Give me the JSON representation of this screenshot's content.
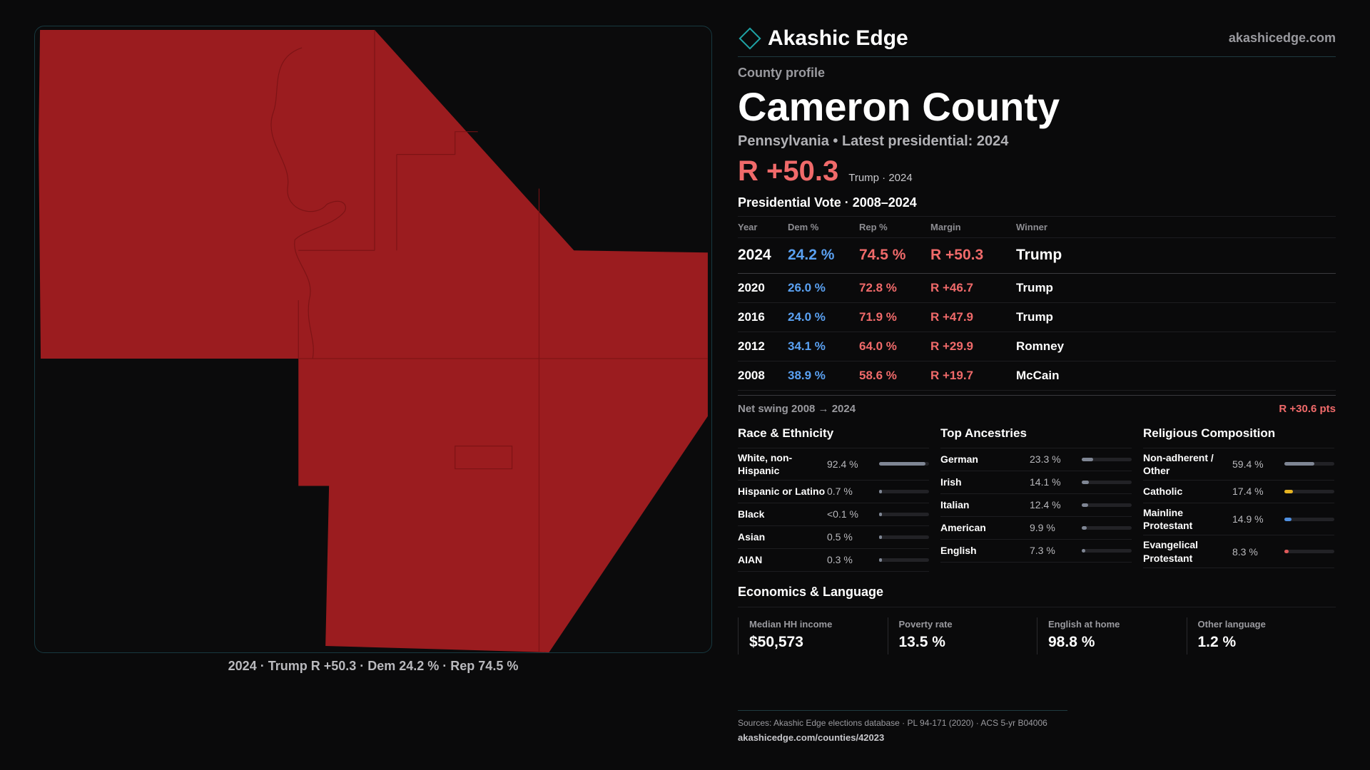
{
  "brand": {
    "name": "Akashic Edge",
    "url": "akashicedge.com"
  },
  "profile": {
    "eyebrow": "County profile",
    "county_name": "Cameron County",
    "subtitle": "Pennsylvania • Latest presidential: 2024",
    "headline_margin": "R +50.3",
    "headline_note": "Trump · 2024"
  },
  "map": {
    "fill_color": "#9b1c1f",
    "caption": "2024 · Trump R +50.3 · Dem 24.2 % · Rep 74.5 %"
  },
  "vote": {
    "title": "Presidential Vote · 2008–2024",
    "headers": {
      "year": "Year",
      "dem": "Dem %",
      "rep": "Rep %",
      "margin": "Margin",
      "winner": "Winner"
    },
    "rows": [
      {
        "year": "2024",
        "dem": "24.2 %",
        "rep": "74.5 %",
        "margin": "R +50.3",
        "winner": "Trump"
      },
      {
        "year": "2020",
        "dem": "26.0 %",
        "rep": "72.8 %",
        "margin": "R +46.7",
        "winner": "Trump"
      },
      {
        "year": "2016",
        "dem": "24.0 %",
        "rep": "71.9 %",
        "margin": "R +47.9",
        "winner": "Trump"
      },
      {
        "year": "2012",
        "dem": "34.1 %",
        "rep": "64.0 %",
        "margin": "R +29.9",
        "winner": "Romney"
      },
      {
        "year": "2008",
        "dem": "38.9 %",
        "rep": "58.6 %",
        "margin": "R +19.7",
        "winner": "McCain"
      }
    ],
    "swing_label": "Net swing 2008 → 2024",
    "swing_value": "R +30.6 pts",
    "dem_color": "#5aa1f2",
    "rep_color": "#f06a6a"
  },
  "race": {
    "title": "Race & Ethnicity",
    "items": [
      {
        "label": "White, non-Hispanic",
        "value": "92.4 %",
        "pct": 92.4
      },
      {
        "label": "Hispanic or Latino",
        "value": "0.7 %",
        "pct": 0.7
      },
      {
        "label": "Black",
        "value": "<0.1 %",
        "pct": 0.05
      },
      {
        "label": "Asian",
        "value": "0.5 %",
        "pct": 0.5
      },
      {
        "label": "AIAN",
        "value": "0.3 %",
        "pct": 0.3
      }
    ]
  },
  "ancestry": {
    "title": "Top Ancestries",
    "items": [
      {
        "label": "German",
        "value": "23.3 %",
        "pct": 23.3
      },
      {
        "label": "Irish",
        "value": "14.1 %",
        "pct": 14.1
      },
      {
        "label": "Italian",
        "value": "12.4 %",
        "pct": 12.4
      },
      {
        "label": "American",
        "value": "9.9 %",
        "pct": 9.9
      },
      {
        "label": "English",
        "value": "7.3 %",
        "pct": 7.3
      }
    ]
  },
  "religion": {
    "title": "Religious Composition",
    "items": [
      {
        "label": "Non-adherent / Other",
        "value": "59.4 %",
        "pct": 59.4,
        "color": "#7f8694"
      },
      {
        "label": "Catholic",
        "value": "17.4 %",
        "pct": 17.4,
        "color": "#e6b422"
      },
      {
        "label": "Mainline Protestant",
        "value": "14.9 %",
        "pct": 14.9,
        "color": "#4f8fe0"
      },
      {
        "label": "Evangelical Protestant",
        "value": "8.3 %",
        "pct": 8.3,
        "color": "#e05a5a"
      }
    ]
  },
  "economics": {
    "title": "Economics & Language",
    "items": [
      {
        "label": "Median HH income",
        "value": "$50,573"
      },
      {
        "label": "Poverty rate",
        "value": "13.5 %"
      },
      {
        "label": "English at home",
        "value": "98.8 %"
      },
      {
        "label": "Other language",
        "value": "1.2 %"
      }
    ]
  },
  "footer": {
    "sources": "Sources: Akashic Edge elections database · PL 94-171 (2020) · ACS 5-yr B04006",
    "url": "akashicedge.com/counties/42023"
  }
}
